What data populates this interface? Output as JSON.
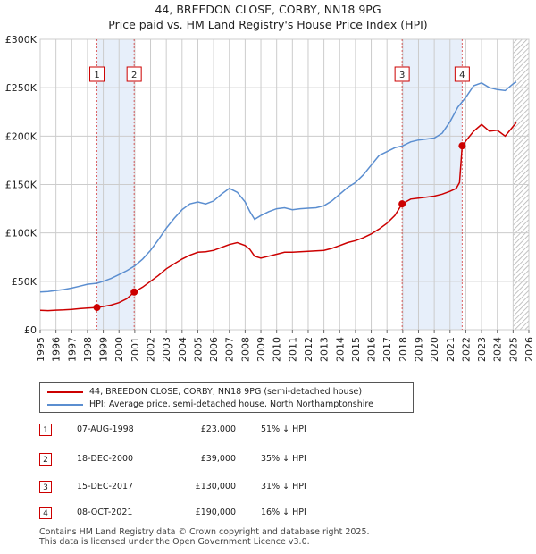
{
  "chart_data": {
    "type": "line",
    "title": "44, BREEDON CLOSE, CORBY, NN18 9PG",
    "subtitle": "Price paid vs. HM Land Registry's House Price Index (HPI)",
    "xlim": [
      1995,
      2026
    ],
    "ylim": [
      0,
      300000
    ],
    "x_ticks": [
      "1995",
      "1996",
      "1997",
      "1998",
      "1999",
      "2000",
      "2001",
      "2002",
      "2003",
      "2004",
      "2005",
      "2006",
      "2007",
      "2008",
      "2009",
      "2010",
      "2011",
      "2012",
      "2013",
      "2014",
      "2015",
      "2016",
      "2017",
      "2018",
      "2019",
      "2020",
      "2021",
      "2022",
      "2023",
      "2024",
      "2025",
      "2026"
    ],
    "y_ticks": [
      {
        "value": 0,
        "label": "£0"
      },
      {
        "value": 50000,
        "label": "£50K"
      },
      {
        "value": 100000,
        "label": "£100K"
      },
      {
        "value": 150000,
        "label": "£150K"
      },
      {
        "value": 200000,
        "label": "£200K"
      },
      {
        "value": 250000,
        "label": "£250K"
      },
      {
        "value": 300000,
        "label": "£300K"
      }
    ],
    "series": [
      {
        "name": "44, BREEDON CLOSE, CORBY, NN18 9PG (semi-detached house)",
        "color": "#cc0000",
        "x": [
          1995.0,
          1995.5,
          1996.0,
          1996.5,
          1997.0,
          1997.5,
          1998.0,
          1998.6,
          1999.0,
          1999.5,
          2000.0,
          2000.5,
          2000.96,
          2001.5,
          2002.0,
          2002.5,
          2003.0,
          2003.5,
          2004.0,
          2004.5,
          2005.0,
          2005.5,
          2006.0,
          2006.5,
          2007.0,
          2007.5,
          2008.0,
          2008.3,
          2008.6,
          2009.0,
          2009.5,
          2010.0,
          2010.5,
          2011.0,
          2011.5,
          2012.0,
          2012.5,
          2013.0,
          2013.5,
          2014.0,
          2014.5,
          2015.0,
          2015.5,
          2016.0,
          2016.5,
          2017.0,
          2017.5,
          2017.96,
          2018.5,
          2019.0,
          2019.5,
          2020.0,
          2020.5,
          2021.0,
          2021.4,
          2021.6,
          2021.77,
          2022.0,
          2022.5,
          2023.0,
          2023.5,
          2024.0,
          2024.5,
          2025.0,
          2025.2
        ],
        "y": [
          20000,
          19800,
          20200,
          20500,
          21000,
          21800,
          22400,
          23000,
          24000,
          25500,
          28000,
          32000,
          39000,
          44000,
          50000,
          56000,
          63000,
          68000,
          73000,
          77000,
          80000,
          80500,
          82000,
          85000,
          88000,
          90000,
          87000,
          83000,
          76000,
          74000,
          76000,
          78000,
          80000,
          80000,
          80500,
          81000,
          81500,
          82000,
          84000,
          87000,
          90000,
          92000,
          95000,
          99000,
          104000,
          110000,
          118000,
          130000,
          135000,
          136000,
          137000,
          138000,
          140000,
          143000,
          146000,
          152000,
          190000,
          195000,
          205000,
          212000,
          205000,
          206000,
          200000,
          210000,
          214000
        ]
      },
      {
        "name": "HPI: Average price, semi-detached house, North Northamptonshire",
        "color": "#5b8ed0",
        "x": [
          1995.0,
          1995.5,
          1996.0,
          1996.5,
          1997.0,
          1997.5,
          1998.0,
          1998.6,
          1999.0,
          1999.5,
          2000.0,
          2000.5,
          2001.0,
          2001.5,
          2002.0,
          2002.5,
          2003.0,
          2003.5,
          2004.0,
          2004.5,
          2005.0,
          2005.5,
          2006.0,
          2006.5,
          2007.0,
          2007.5,
          2008.0,
          2008.3,
          2008.6,
          2009.0,
          2009.5,
          2010.0,
          2010.5,
          2011.0,
          2011.5,
          2012.0,
          2012.5,
          2013.0,
          2013.5,
          2014.0,
          2014.5,
          2015.0,
          2015.5,
          2016.0,
          2016.5,
          2017.0,
          2017.5,
          2018.0,
          2018.5,
          2019.0,
          2019.5,
          2020.0,
          2020.5,
          2021.0,
          2021.5,
          2022.0,
          2022.5,
          2023.0,
          2023.5,
          2024.0,
          2024.5,
          2025.0,
          2025.2
        ],
        "y": [
          39000,
          39500,
          40500,
          41500,
          43000,
          45000,
          47000,
          48000,
          50000,
          53000,
          57000,
          61000,
          66000,
          73000,
          82000,
          93000,
          105000,
          115000,
          124000,
          130000,
          132000,
          130000,
          133000,
          140000,
          146000,
          142000,
          132000,
          122000,
          114000,
          118000,
          122000,
          125000,
          126000,
          124000,
          125000,
          125500,
          126000,
          128000,
          133000,
          140000,
          147000,
          152000,
          160000,
          170000,
          180000,
          184000,
          188000,
          190000,
          194000,
          196000,
          197000,
          198000,
          203000,
          215000,
          230000,
          240000,
          252000,
          255000,
          250000,
          248000,
          247000,
          254000,
          256000
        ]
      }
    ],
    "sales": [
      {
        "num": "1",
        "x": 1998.6,
        "y": 23000,
        "date": "07-AUG-1998",
        "price": "£23,000",
        "pct": "51% ↓ HPI"
      },
      {
        "num": "2",
        "x": 2000.96,
        "y": 39000,
        "date": "18-DEC-2000",
        "price": "£39,000",
        "pct": "35% ↓ HPI"
      },
      {
        "num": "3",
        "x": 2017.96,
        "y": 130000,
        "date": "15-DEC-2017",
        "price": "£130,000",
        "pct": "31% ↓ HPI"
      },
      {
        "num": "4",
        "x": 2021.77,
        "y": 190000,
        "date": "08-OCT-2021",
        "price": "£190,000",
        "pct": "16% ↓ HPI"
      }
    ],
    "shaded_spans": [
      [
        1998.6,
        2000.96
      ],
      [
        2017.96,
        2021.77
      ]
    ],
    "forecast_start": 2025.0,
    "colors": {
      "sale": "#cc0000",
      "hpi": "#5b8ed0",
      "grid": "#cccccc",
      "shade": "#dde8f8"
    }
  },
  "legend": {
    "sale_label": "44, BREEDON CLOSE, CORBY, NN18 9PG (semi-detached house)",
    "hpi_label": "HPI: Average price, semi-detached house, North Northamptonshire"
  },
  "footer": {
    "line1": "Contains HM Land Registry data © Crown copyright and database right 2025.",
    "line2": "This data is licensed under the Open Government Licence v3.0."
  }
}
